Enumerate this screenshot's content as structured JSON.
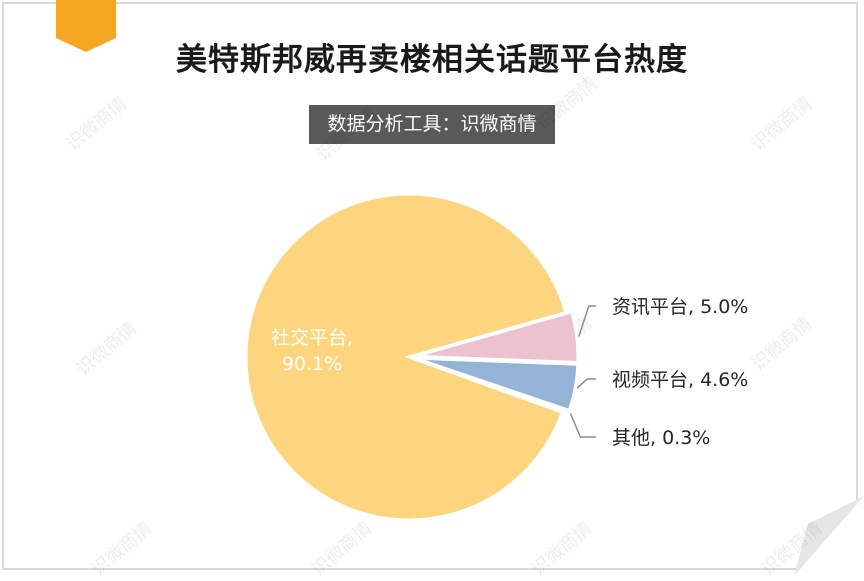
{
  "title": "美特斯邦威再卖楼相关话题平台热度",
  "subtitle": "数据分析工具：识微商情",
  "watermark": "识微商情",
  "colors": {
    "accent": "#f5a623",
    "social": "#fdd57e",
    "news": "#edc2cf",
    "video": "#95b3d7",
    "other": "#7f7f7f"
  },
  "chart_data": {
    "type": "pie",
    "slices": [
      {
        "name": "社交平台",
        "value": 90.1,
        "label": "社交平台, 90.1%",
        "label_line1": "社交平台,",
        "label_line2": "90.1%"
      },
      {
        "name": "资讯平台",
        "value": 5.0,
        "label": "资讯平台, 5.0%"
      },
      {
        "name": "视频平台",
        "value": 4.6,
        "label": "视频平台, 4.6%"
      },
      {
        "name": "其他",
        "value": 0.3,
        "label": "其他, 0.3%"
      }
    ]
  }
}
